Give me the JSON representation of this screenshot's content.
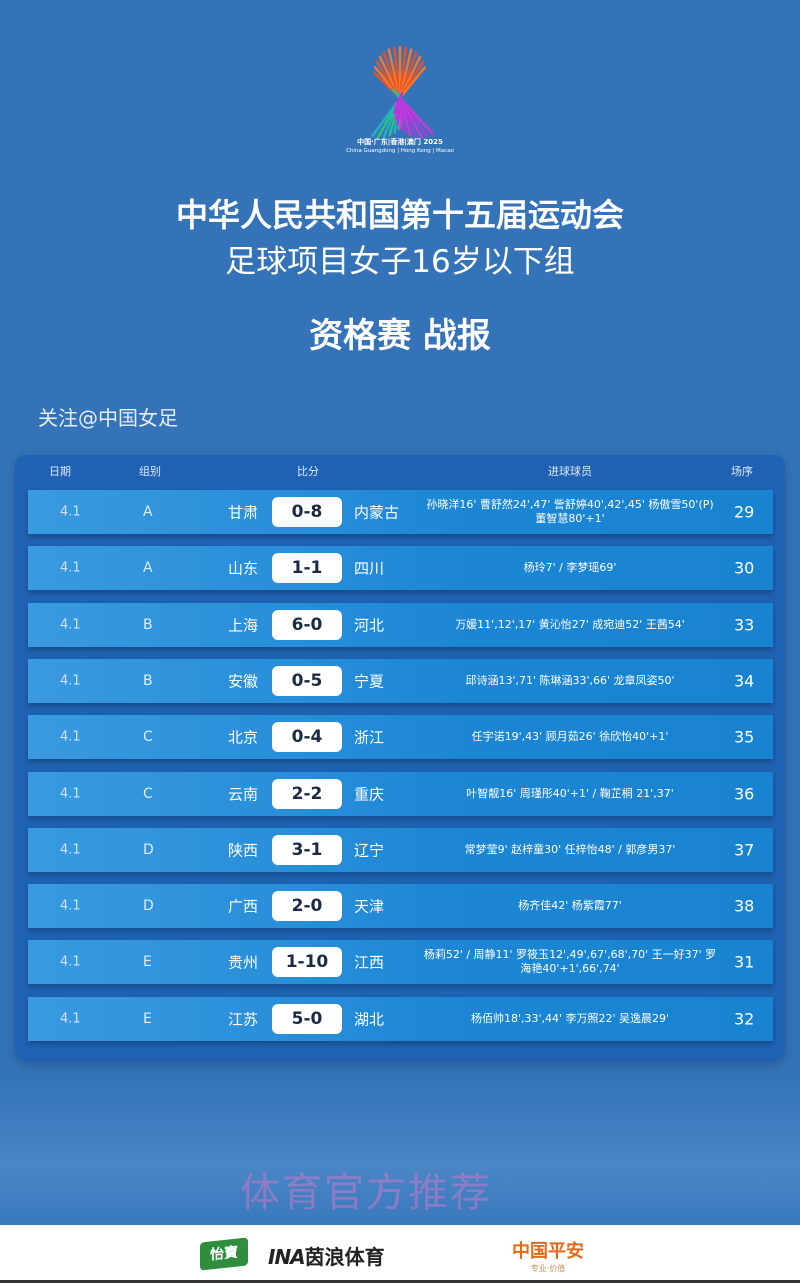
{
  "logo": {
    "line1": "中国·广东|香港|澳门 2025",
    "line2": "China Guangdong | Hong Kong | Macao"
  },
  "title": {
    "line1": "中华人民共和国第十五届运动会",
    "line2": "足球项目女子16岁以下组",
    "line3": "资格赛 战报"
  },
  "follow": "关注@中国女足",
  "table": {
    "headers": {
      "date": "日期",
      "group": "组别",
      "score": "比分",
      "scorers": "进球球员",
      "match_no": "场序"
    },
    "rows": [
      {
        "date": "4.1",
        "group": "A",
        "home": "甘肃",
        "score": "0-8",
        "away": "内蒙古",
        "scorers": "孙晓洋16' 曹舒然24',47' 訾舒婷40',42',45' 杨傲雪50'(P) 董智慧80'+1'",
        "match_no": "29"
      },
      {
        "date": "4.1",
        "group": "A",
        "home": "山东",
        "score": "1-1",
        "away": "四川",
        "scorers": "杨玲7' / 李梦瑶69'",
        "match_no": "30"
      },
      {
        "date": "4.1",
        "group": "B",
        "home": "上海",
        "score": "6-0",
        "away": "河北",
        "scorers": "万媛11',12',17' 黄沁怡27' 成宛迪52' 王茜54'",
        "match_no": "33"
      },
      {
        "date": "4.1",
        "group": "B",
        "home": "安徽",
        "score": "0-5",
        "away": "宁夏",
        "scorers": "邱诗涵13',71' 陈琳涵33',66' 龙章凤姿50'",
        "match_no": "34"
      },
      {
        "date": "4.1",
        "group": "C",
        "home": "北京",
        "score": "0-4",
        "away": "浙江",
        "scorers": "任宇诺19',43' 顾月茹26' 徐欣怡40'+1'",
        "match_no": "35"
      },
      {
        "date": "4.1",
        "group": "C",
        "home": "云南",
        "score": "2-2",
        "away": "重庆",
        "scorers": "叶智靓16' 周瑾彤40'+1' / 鞠芷桐 21',37'",
        "match_no": "36"
      },
      {
        "date": "4.1",
        "group": "D",
        "home": "陕西",
        "score": "3-1",
        "away": "辽宁",
        "scorers": "常梦莹9' 赵梓童30' 任梓怡48' /  郭彦男37'",
        "match_no": "37"
      },
      {
        "date": "4.1",
        "group": "D",
        "home": "广西",
        "score": "2-0",
        "away": "天津",
        "scorers": "杨齐佳42' 杨紫霞77'",
        "match_no": "38"
      },
      {
        "date": "4.1",
        "group": "E",
        "home": "贵州",
        "score": "1-10",
        "away": "江西",
        "scorers": "杨莉52' / 周静11' 罗筱玉12',49',67',68',70' 王一好37' 罗海艳40'+1',66',74'",
        "match_no": "31"
      },
      {
        "date": "4.1",
        "group": "E",
        "home": "江苏",
        "score": "5-0",
        "away": "湖北",
        "scorers": "杨佰帅18',33',44' 李万照22' 吴逸晨29'",
        "match_no": "32"
      }
    ]
  },
  "sponsors": {
    "s1": "怡寶",
    "s2_mark": "INA",
    "s2": "茵浪体育",
    "s3": "中国平安",
    "s3_sub": "专业·价值"
  },
  "watermark": "体育官方推荐",
  "colors": {
    "background": "#3573b8",
    "panel": "#1f62b3",
    "row": "#1b86d4",
    "score_pill": "#ffffff"
  }
}
